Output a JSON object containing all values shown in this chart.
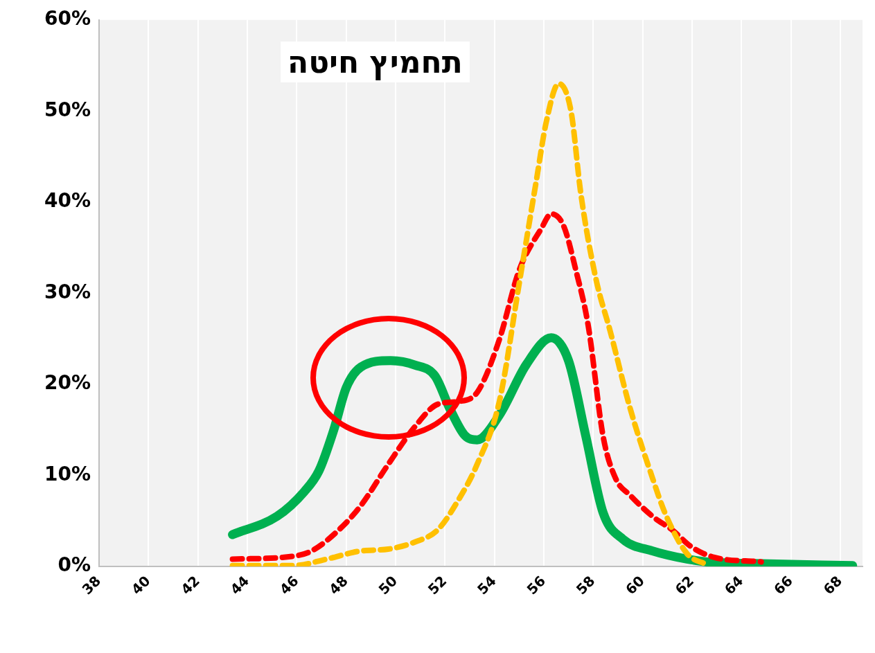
{
  "chart_data": {
    "type": "line",
    "annotations": [
      "תחמיץ חיטה"
    ],
    "xlim": [
      38,
      68.9
    ],
    "xticks": [
      38,
      40,
      42,
      44,
      46,
      48,
      50,
      52,
      54,
      56,
      58,
      60,
      62,
      64,
      66,
      68
    ],
    "ylim": [
      0,
      60
    ],
    "yticks": [
      {
        "value": 0,
        "label": "0%"
      },
      {
        "value": 10,
        "label": "10%"
      },
      {
        "value": 20,
        "label": "20%"
      },
      {
        "value": 30,
        "label": "30%"
      },
      {
        "value": 40,
        "label": "40%"
      },
      {
        "value": 50,
        "label": "50%"
      },
      {
        "value": 60,
        "label": "60%"
      }
    ],
    "grid": "x",
    "legend": false,
    "marker": "none",
    "series": [
      {
        "color": "#00b050",
        "line_style": "solid",
        "x": [
          43.4,
          45.2,
          46.3,
          46.9,
          47.5,
          48.0,
          48.6,
          49.8,
          50.8,
          51.6,
          52.2,
          52.8,
          53.3,
          54.2,
          55.3,
          56.3,
          57.0,
          57.7,
          58.4,
          59.2,
          60.4,
          61.8,
          62.6,
          64.8,
          68.5
        ],
        "values": [
          3.5,
          5.5,
          8.2,
          10.5,
          15,
          19.6,
          21.9,
          22.6,
          22.1,
          20.9,
          17.3,
          14.4,
          13.9,
          16.6,
          22.2,
          25.1,
          22.6,
          14.3,
          5.9,
          3.0,
          1.7,
          0.8,
          0.5,
          0.3,
          0.1
        ]
      },
      {
        "color": "#ff0000",
        "line_style": "dashed",
        "x": [
          43.4,
          45.8,
          46.6,
          47.7,
          48.6,
          49.7,
          50.8,
          51.7,
          52.5,
          53.3,
          54.2,
          55.0,
          55.9,
          56.3,
          56.8,
          57.3,
          57.8,
          58.4,
          58.9,
          59.5,
          60.4,
          61.2,
          62.0,
          62.9,
          64.8
        ],
        "values": [
          0.8,
          1.1,
          1.7,
          4.0,
          6.7,
          11.2,
          15.4,
          17.8,
          18.1,
          19.1,
          24.9,
          32.5,
          37.1,
          38.7,
          37.4,
          32.5,
          26.4,
          14.3,
          9.7,
          7.8,
          5.5,
          4.0,
          2.1,
          1.0,
          0.5
        ]
      },
      {
        "color": "#ffc000",
        "line_style": "dashed",
        "x": [
          43.4,
          45.9,
          47.2,
          48.6,
          49.7,
          50.8,
          51.7,
          52.5,
          53.3,
          54.2,
          55.0,
          55.7,
          56.1,
          56.6,
          57.1,
          57.5,
          58.1,
          58.7,
          59.5,
          60.4,
          60.9,
          61.8,
          62.6
        ],
        "values": [
          0.1,
          0.1,
          0.8,
          1.7,
          1.9,
          2.7,
          4.0,
          7.1,
          11.2,
          18.1,
          31.0,
          42.4,
          48.8,
          53.0,
          50.0,
          40.9,
          31.7,
          25.7,
          17.3,
          9.7,
          5.9,
          1.4,
          0.2
        ]
      }
    ]
  }
}
